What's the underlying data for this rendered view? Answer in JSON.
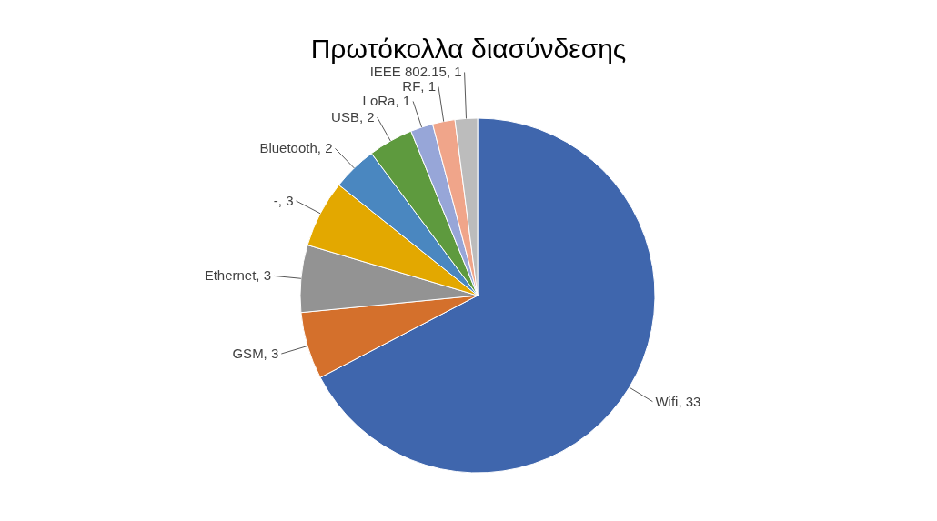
{
  "chart_data": {
    "type": "pie",
    "title": "Πρωτόκολλα διασύνδεσης",
    "categories": [
      "Wifi",
      "GSM",
      "Ethernet",
      "-",
      "Bluetooth",
      "USB",
      "LoRa",
      "RF",
      "IEEE 802.15"
    ],
    "values": [
      33,
      3,
      3,
      3,
      2,
      2,
      1,
      1,
      1
    ],
    "colors": [
      "#3f66ad",
      "#d4702c",
      "#939393",
      "#e3a800",
      "#4a87c0",
      "#5e9a3e",
      "#97a6d8",
      "#f0a58a",
      "#bcbcbc"
    ],
    "value_labels": [
      ", 33",
      ", 3",
      ", 3",
      ", 3",
      ", 2",
      ", 2",
      ", 1",
      ", 1",
      ", 1"
    ],
    "legend": false
  }
}
